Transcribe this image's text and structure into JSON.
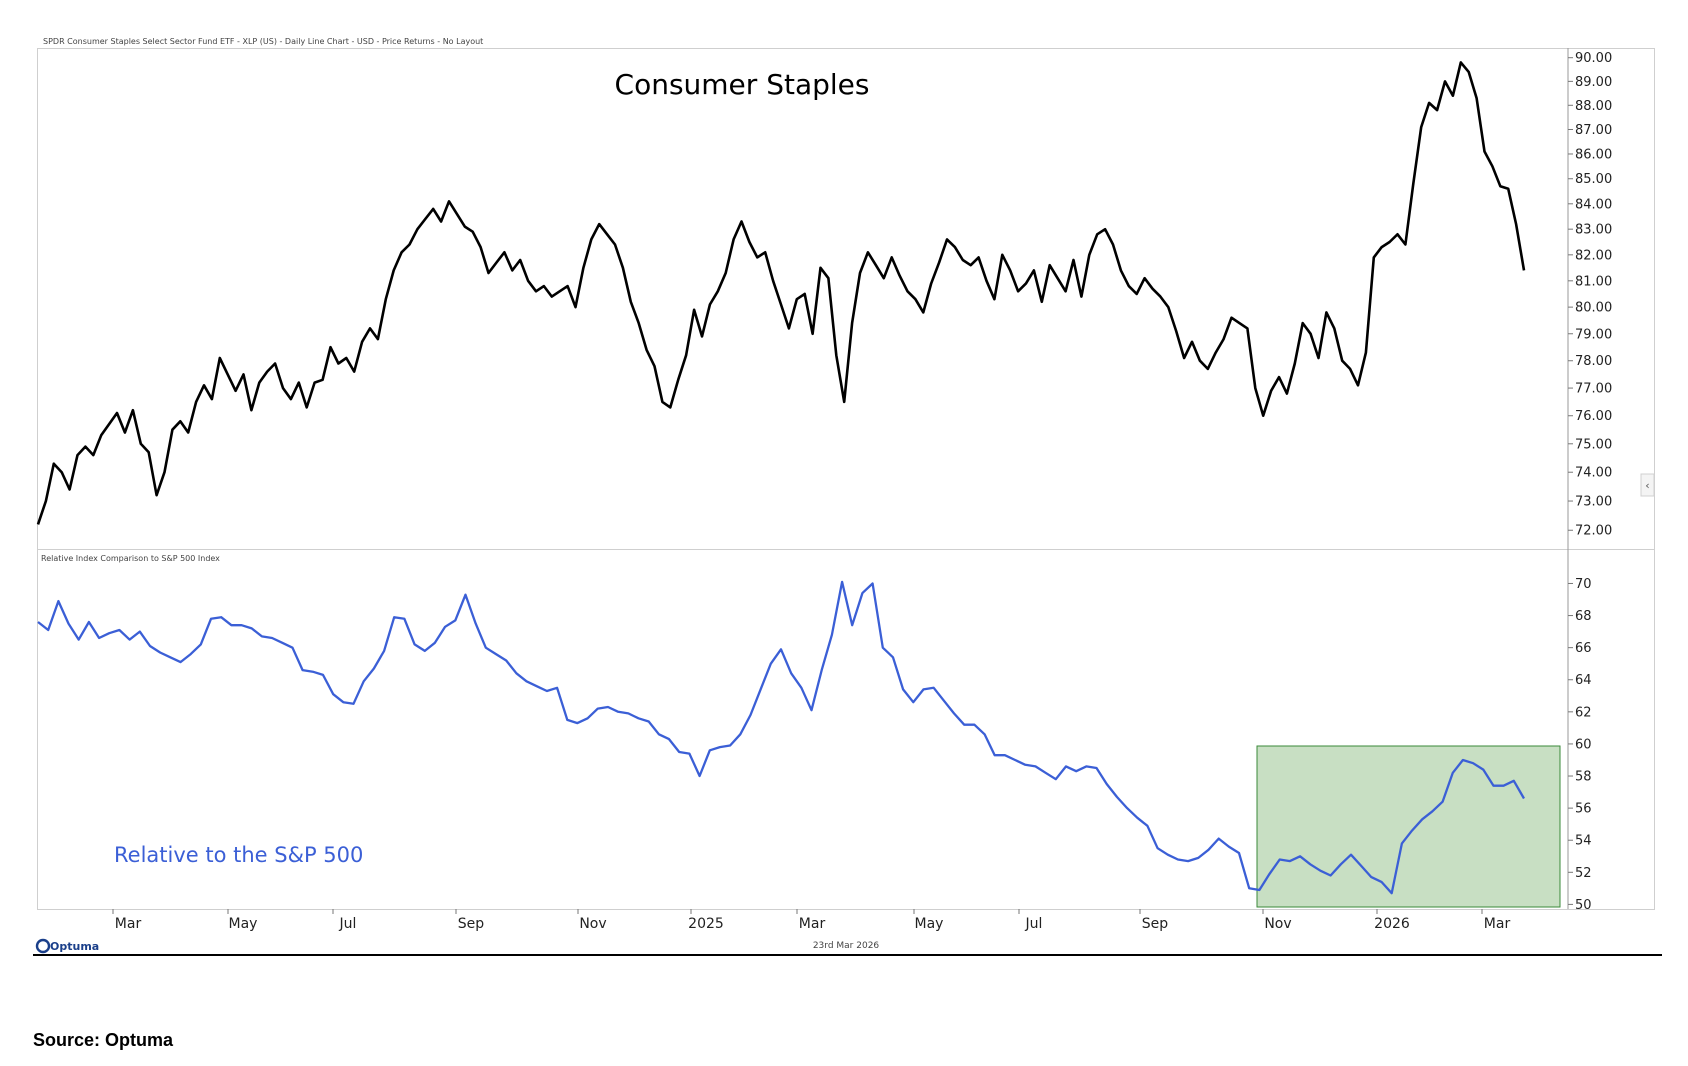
{
  "header_text": "SPDR Consumer Staples Select Sector Fund ETF - XLP (US) - Daily Line Chart - USD - Price Returns - No Layout",
  "lower_header_text": "Relative Index Comparison to S&P 500 Index",
  "date_stamp": "23rd Mar 2026",
  "logo_text": "Optuma",
  "source": "Source: Optuma",
  "colors": {
    "price_line": "#000000",
    "relative_line": "#3b5fd6",
    "highlight_fill": "#c8dfc3",
    "highlight_stroke": "#3a8a3a",
    "label_color": "#3b5fd6"
  },
  "chart_data": [
    {
      "type": "line",
      "title": "Consumer Staples",
      "series": [
        {
          "values": [
            72.2,
            73.0,
            74.3,
            74.0,
            73.4,
            74.6,
            74.9,
            74.6,
            75.3,
            75.7,
            76.1,
            75.4,
            76.2,
            75.0,
            74.7,
            73.2,
            74.0,
            75.5,
            75.8,
            75.4,
            76.5,
            77.1,
            76.6,
            78.1,
            77.5,
            76.9,
            77.5,
            76.2,
            77.2,
            77.6,
            77.9,
            77.0,
            76.6,
            77.2,
            76.3,
            77.2,
            77.3,
            78.5,
            77.9,
            78.1,
            77.6,
            78.7,
            79.2,
            78.8,
            80.3,
            81.4,
            82.1,
            82.4,
            83.0,
            83.4,
            83.8,
            83.3,
            84.1,
            83.6,
            83.1,
            82.9,
            82.3,
            81.3,
            81.7,
            82.1,
            81.4,
            81.8,
            81.0,
            80.6,
            80.8,
            80.4,
            80.6,
            80.8,
            80.0,
            81.5,
            82.6,
            83.2,
            82.8,
            82.4,
            81.5,
            80.2,
            79.4,
            78.4,
            77.8,
            76.5,
            76.3,
            77.3,
            78.2,
            79.9,
            78.9,
            80.1,
            80.6,
            81.3,
            82.6,
            83.3,
            82.5,
            81.9,
            82.1,
            81.0,
            80.1,
            79.2,
            80.3,
            80.5,
            79.0,
            81.5,
            81.1,
            78.2,
            76.5,
            79.4,
            81.3,
            82.1,
            81.6,
            81.1,
            81.9,
            81.2,
            80.6,
            80.3,
            79.8,
            80.9,
            81.7,
            82.6,
            82.3,
            81.8,
            81.6,
            81.9,
            81.0,
            80.3,
            82.0,
            81.4,
            80.6,
            80.9,
            81.4,
            80.2,
            81.6,
            81.1,
            80.6,
            81.8,
            80.4,
            82.0,
            82.8,
            83.0,
            82.4,
            81.4,
            80.8,
            80.5,
            81.1,
            80.7,
            80.4,
            80.0,
            79.1,
            78.1,
            78.7,
            78.0,
            77.7,
            78.3,
            78.8,
            79.6,
            79.4,
            79.2,
            77.0,
            76.0,
            76.9,
            77.4,
            76.8,
            77.9,
            79.4,
            79.0,
            78.1,
            79.8,
            79.2,
            78.0,
            77.7,
            77.1,
            78.3,
            81.9,
            82.3,
            82.5,
            82.8,
            82.4,
            84.8,
            87.1,
            88.1,
            87.8,
            89.0,
            88.4,
            89.8,
            89.4,
            88.3,
            86.1,
            85.5,
            84.7,
            84.6,
            83.2,
            81.4
          ]
        }
      ],
      "x_tick_labels": [
        "Mar",
        "May",
        "Jul",
        "Sep",
        "Nov",
        "2025",
        "Mar",
        "May",
        "Jul",
        "Sep",
        "Nov",
        "2026",
        "Mar"
      ],
      "y_tick_labels": [
        "90.00",
        "89.00",
        "88.00",
        "87.00",
        "86.00",
        "85.00",
        "84.00",
        "83.00",
        "82.00",
        "81.00",
        "80.00",
        "79.00",
        "78.00",
        "77.00",
        "76.00",
        "75.00",
        "74.00",
        "73.00",
        "72.00"
      ],
      "y_scale": "log",
      "ylim": [
        71.5,
        90.2
      ]
    },
    {
      "type": "line",
      "title": "",
      "annotation": "Relative to the S&P 500",
      "series": [
        {
          "values": [
            67.6,
            67.1,
            68.9,
            67.5,
            66.5,
            67.6,
            66.6,
            66.9,
            67.1,
            66.5,
            67.0,
            66.1,
            65.7,
            65.4,
            65.1,
            65.6,
            66.2,
            67.8,
            67.9,
            67.4,
            67.4,
            67.2,
            66.7,
            66.6,
            66.3,
            66.0,
            64.6,
            64.5,
            64.3,
            63.1,
            62.6,
            62.5,
            63.9,
            64.7,
            65.8,
            67.9,
            67.8,
            66.2,
            65.8,
            66.3,
            67.3,
            67.7,
            69.3,
            67.5,
            66.0,
            65.6,
            65.2,
            64.4,
            63.9,
            63.6,
            63.3,
            63.5,
            61.5,
            61.3,
            61.6,
            62.2,
            62.3,
            62.0,
            61.9,
            61.6,
            61.4,
            60.6,
            60.3,
            59.5,
            59.4,
            58.0,
            59.6,
            59.8,
            59.9,
            60.6,
            61.8,
            63.4,
            65.0,
            65.9,
            64.4,
            63.5,
            62.1,
            64.6,
            66.8,
            70.1,
            67.4,
            69.4,
            70.0,
            66.0,
            65.4,
            63.4,
            62.6,
            63.4,
            63.5,
            62.7,
            61.9,
            61.2,
            61.2,
            60.6,
            59.3,
            59.3,
            59.0,
            58.7,
            58.6,
            58.2,
            57.8,
            58.6,
            58.3,
            58.6,
            58.5,
            57.5,
            56.7,
            56.0,
            55.4,
            54.9,
            53.5,
            53.1,
            52.8,
            52.7,
            52.9,
            53.4,
            54.1,
            53.6,
            53.2,
            51.0,
            50.9,
            51.9,
            52.8,
            52.7,
            53.0,
            52.5,
            52.1,
            51.8,
            52.5,
            53.1,
            52.4,
            51.7,
            51.4,
            50.7,
            53.8,
            54.6,
            55.3,
            55.8,
            56.4,
            58.2,
            59.0,
            58.8,
            58.4,
            57.4,
            57.4,
            57.7,
            56.6
          ]
        }
      ],
      "x_tick_labels": [
        "Mar",
        "May",
        "Jul",
        "Sep",
        "Nov",
        "2025",
        "Mar",
        "May",
        "Jul",
        "Sep",
        "Nov",
        "2026",
        "Mar"
      ],
      "y_tick_labels": [
        "70",
        "68",
        "66",
        "64",
        "62",
        "60",
        "58",
        "56",
        "54",
        "52",
        "50"
      ],
      "ylim": [
        49.9,
        71.4
      ]
    }
  ]
}
